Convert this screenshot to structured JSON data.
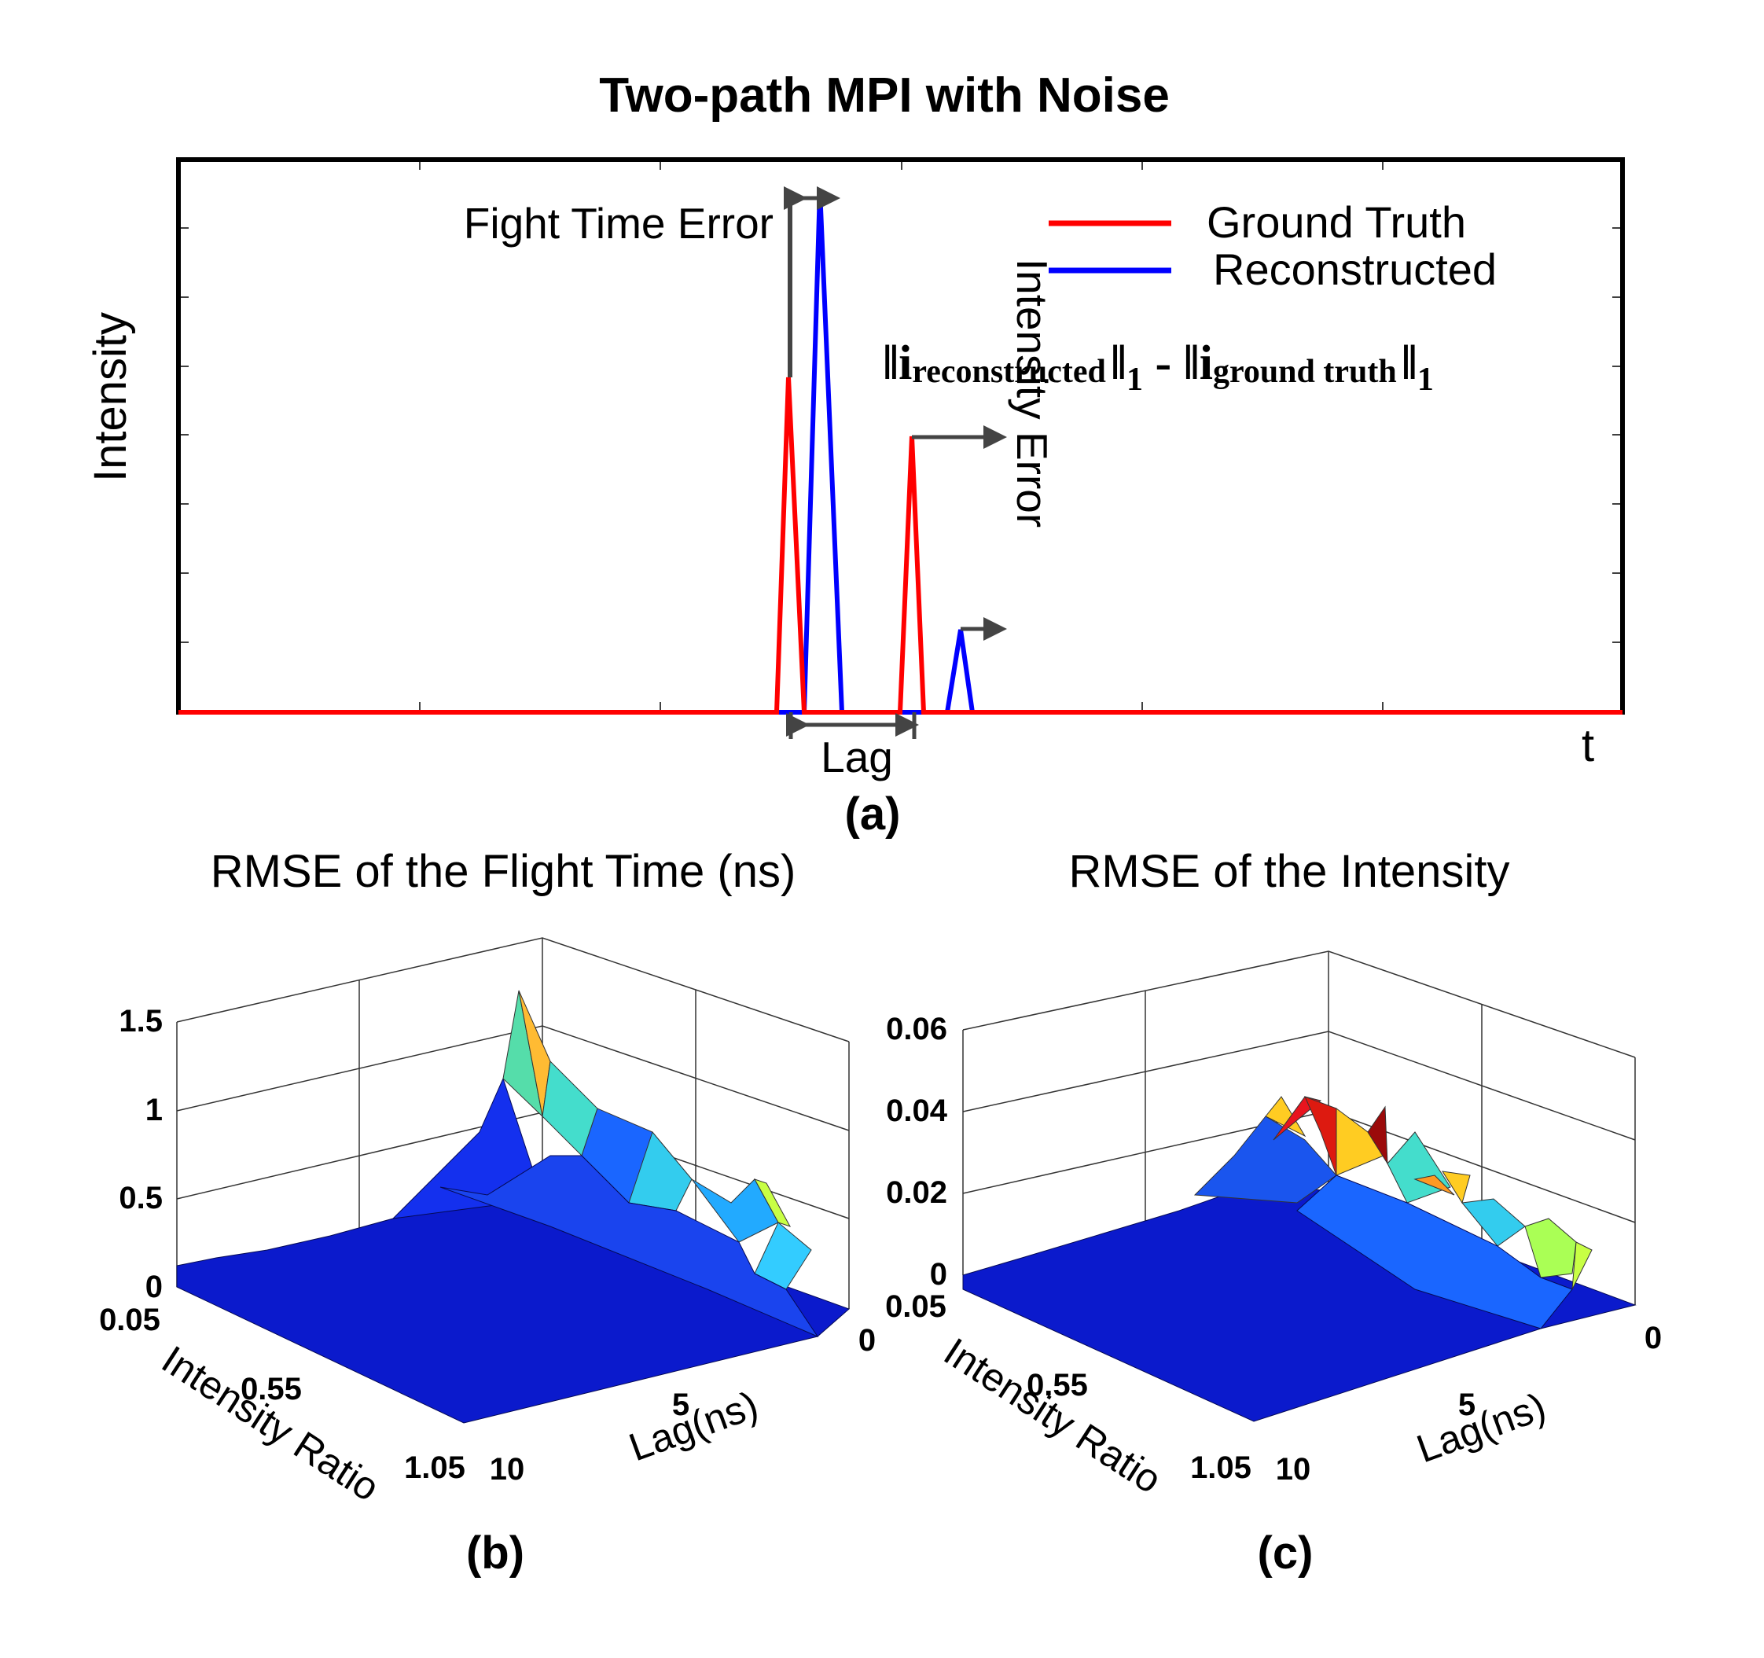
{
  "figure": {
    "title": "Two-path MPI with Noise",
    "panel_labels": [
      "(a)",
      "(b)",
      "(c)"
    ]
  },
  "chart_data": [
    {
      "type": "line",
      "ylabel": "Intensity",
      "xlabel": "t",
      "legend_position": "top-right",
      "series": [
        {
          "name": "Ground Truth",
          "color": "#ff0000"
        },
        {
          "name": "Reconstructed",
          "color": "#0000ff"
        }
      ],
      "annotations": {
        "flight_time_error": "Fight Time Error",
        "lag": "Lag",
        "intensity_error": "Intensity Error",
        "formula": {
          "norm": "‖",
          "i": "i",
          "sub_a": "reconstructed",
          "one": "1",
          "minus": " - ",
          "sub_b": "ground truth"
        }
      }
    },
    {
      "type": "surface",
      "title": "RMSE of the Flight Time (ns)",
      "xlabel": "Lag(ns)",
      "ylabel": "Intensity Ratio",
      "x_ticks": [
        "0",
        "5",
        "10"
      ],
      "y_ticks": [
        "0.05",
        "0.55",
        "1.05"
      ],
      "z_ticks": [
        "0",
        "0.5",
        "1",
        "1.5"
      ],
      "zlim": [
        0,
        1.5
      ],
      "peak": 1.4
    },
    {
      "type": "surface",
      "title": "RMSE of the Intensity",
      "xlabel": "Lag(ns)",
      "ylabel": "Intensity Ratio",
      "x_ticks": [
        "0",
        "5",
        "10"
      ],
      "y_ticks": [
        "0.05",
        "0.55",
        "1.05"
      ],
      "z_ticks": [
        "0",
        "0.02",
        "0.04",
        "0.06"
      ],
      "zlim": [
        0,
        0.06
      ],
      "peak": 0.045
    }
  ]
}
